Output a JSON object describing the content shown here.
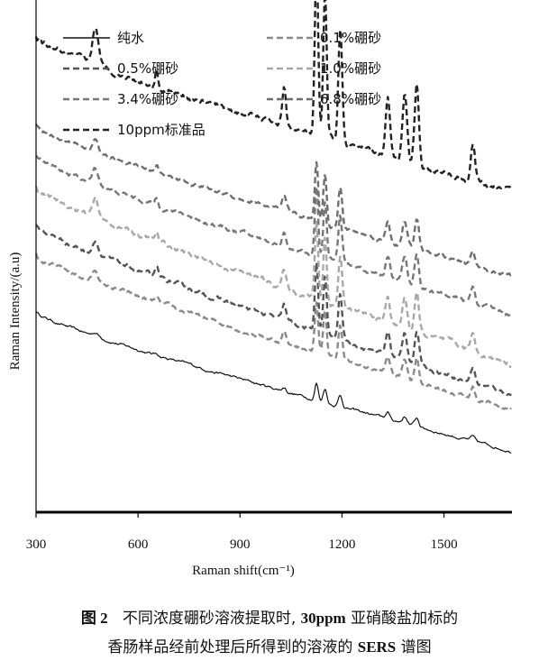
{
  "chart_data": {
    "type": "line",
    "title": "",
    "xlabel": "Raman shift(cm⁻¹)",
    "ylabel": "Raman Intensity/(a.u)",
    "xlim": [
      300,
      1700
    ],
    "xticks": [
      "300",
      "600",
      "900",
      "1200",
      "1500"
    ],
    "yticks_shown": false,
    "legend_position": "top",
    "peaks_cm1": [
      475,
      655,
      1030,
      1125,
      1150,
      1195,
      1335,
      1385,
      1420,
      1585
    ],
    "series": [
      {
        "name": "纯水",
        "style": "solid",
        "color": "#111111",
        "start": 0.53,
        "end": 0.16,
        "peak_scale": 0.1,
        "noise": 0.05
      },
      {
        "name": "0.1%硼砂",
        "style": "dashed",
        "color": "#8a8a8a",
        "start": 0.68,
        "end": 0.27,
        "peak_scale": 0.3,
        "noise": 0.07
      },
      {
        "name": "0.5%硼砂",
        "style": "dashed",
        "color": "#555555",
        "start": 0.76,
        "end": 0.31,
        "peak_scale": 0.4,
        "noise": 0.08
      },
      {
        "name": "1.0%硼砂",
        "style": "dashed",
        "color": "#a8a8a8",
        "start": 0.86,
        "end": 0.39,
        "peak_scale": 0.45,
        "noise": 0.09
      },
      {
        "name": "3.4%硼砂",
        "style": "dashed",
        "color": "#777777",
        "start": 0.94,
        "end": 0.52,
        "peak_scale": 0.4,
        "noise": 0.07
      },
      {
        "name": "6.8%硼砂",
        "style": "dashed",
        "color": "#6e6e6e",
        "start": 1.02,
        "end": 0.62,
        "peak_scale": 0.35,
        "noise": 0.07
      },
      {
        "name": "10ppm标准品",
        "style": "dashed",
        "color": "#222222",
        "start": 1.25,
        "end": 0.84,
        "peak_scale": 1.0,
        "noise": 0.1
      }
    ]
  },
  "caption": {
    "fig_label": "图 2",
    "line1_a": "不同浓度硼砂溶液提取时,",
    "line1_num": "30ppm",
    "line1_b": "亚硝酸盐加标的",
    "line2_a": "香肠样品经前处理后所得到的溶液的",
    "line2_num": "SERS",
    "line2_b": "谱图"
  }
}
